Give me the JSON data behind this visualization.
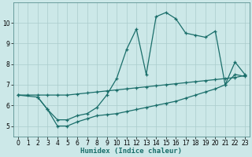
{
  "xlabel": "Humidex (Indice chaleur)",
  "bg_color": "#cce8e8",
  "line_color": "#1a6e6a",
  "grid_color": "#aacccc",
  "xlim": [
    -0.5,
    23.5
  ],
  "ylim": [
    4.5,
    11.0
  ],
  "yticks": [
    5,
    6,
    7,
    8,
    9,
    10
  ],
  "xticks": [
    0,
    1,
    2,
    3,
    4,
    5,
    6,
    7,
    8,
    9,
    10,
    11,
    12,
    13,
    14,
    15,
    16,
    17,
    18,
    19,
    20,
    21,
    22,
    23
  ],
  "line1_x": [
    0,
    1,
    2,
    3,
    4,
    5,
    6,
    7,
    8,
    9,
    10,
    11,
    12,
    13,
    14,
    15,
    16,
    17,
    18,
    19,
    20,
    21,
    22,
    23
  ],
  "line1_y": [
    6.5,
    6.5,
    6.5,
    6.5,
    6.5,
    6.5,
    6.55,
    6.6,
    6.65,
    6.7,
    6.75,
    6.8,
    6.85,
    6.9,
    6.95,
    7.0,
    7.05,
    7.1,
    7.15,
    7.2,
    7.25,
    7.3,
    7.35,
    7.45
  ],
  "line2_x": [
    2,
    3,
    4,
    5,
    6,
    7,
    8,
    9,
    10,
    11,
    12,
    13,
    14,
    15,
    16,
    17,
    18,
    19,
    20,
    21,
    22,
    23
  ],
  "line2_y": [
    6.4,
    5.8,
    5.0,
    5.0,
    5.2,
    5.35,
    5.5,
    5.55,
    5.6,
    5.7,
    5.8,
    5.9,
    6.0,
    6.1,
    6.2,
    6.35,
    6.5,
    6.65,
    6.8,
    7.0,
    7.5,
    7.4
  ],
  "line3_x": [
    0,
    2,
    3,
    4,
    5,
    6,
    7,
    8,
    9,
    10,
    11,
    12,
    13,
    14,
    15,
    16,
    17,
    18,
    19,
    20,
    21,
    22,
    23
  ],
  "line3_y": [
    6.5,
    6.4,
    5.8,
    5.3,
    5.3,
    5.5,
    5.6,
    5.9,
    6.5,
    7.3,
    8.7,
    9.7,
    7.5,
    10.3,
    10.5,
    10.2,
    9.5,
    9.4,
    9.3,
    9.6,
    7.0,
    8.1,
    7.5
  ]
}
